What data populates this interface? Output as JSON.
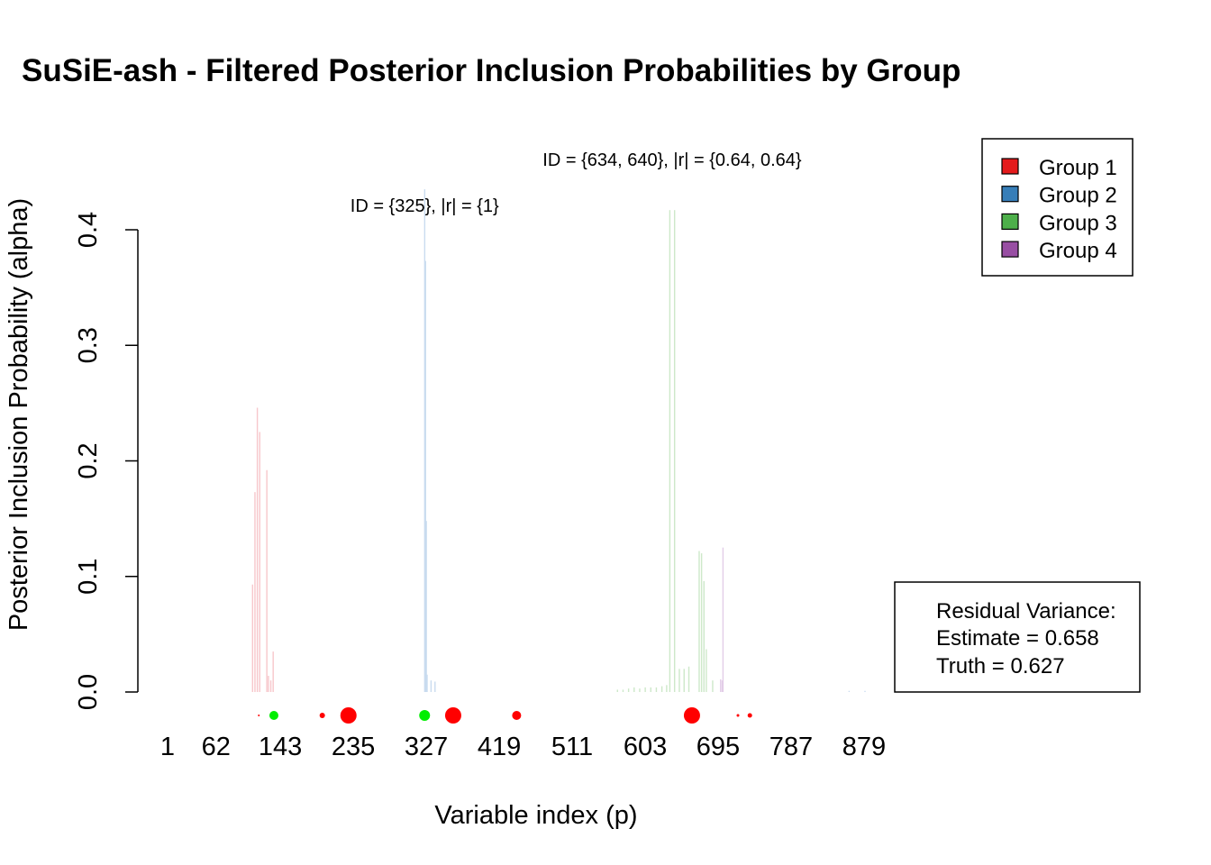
{
  "chart_data": {
    "type": "bar",
    "title": "SuSiE-ash - Filtered Posterior Inclusion Probabilities by Group",
    "xlabel": "Variable index (p)",
    "ylabel": "Posterior Inclusion Probability (alpha)",
    "xlim": [
      1,
      950
    ],
    "ylim": [
      0,
      0.4
    ],
    "x_ticks": [
      1,
      62,
      143,
      235,
      327,
      419,
      511,
      603,
      695,
      787,
      879
    ],
    "y_ticks": [
      0.0,
      0.1,
      0.2,
      0.3,
      0.4
    ],
    "y_tick_labels": [
      "0.0",
      "0.1",
      "0.2",
      "0.3",
      "0.4"
    ],
    "groups": [
      {
        "name": "Group 1",
        "color": "#E41A1C",
        "bar_color": "#F7C7CB"
      },
      {
        "name": "Group 2",
        "color": "#377EB8",
        "bar_color": "#C9DBEF"
      },
      {
        "name": "Group 3",
        "color": "#4DAF4A",
        "bar_color": "#CDE8C9"
      },
      {
        "name": "Group 4",
        "color": "#984EA3",
        "bar_color": "#E3CDE8"
      }
    ],
    "bars": [
      {
        "x": 108,
        "y": 0.093,
        "group": 1
      },
      {
        "x": 111,
        "y": 0.173,
        "group": 1
      },
      {
        "x": 114,
        "y": 0.246,
        "group": 1
      },
      {
        "x": 117,
        "y": 0.225,
        "group": 1
      },
      {
        "x": 126,
        "y": 0.192,
        "group": 1
      },
      {
        "x": 128,
        "y": 0.014,
        "group": 1
      },
      {
        "x": 131,
        "y": 0.01,
        "group": 1
      },
      {
        "x": 134,
        "y": 0.035,
        "group": 1
      },
      {
        "x": 325,
        "y": 0.435,
        "group": 2
      },
      {
        "x": 326,
        "y": 0.373,
        "group": 2
      },
      {
        "x": 327,
        "y": 0.148,
        "group": 2
      },
      {
        "x": 328,
        "y": 0.015,
        "group": 2
      },
      {
        "x": 333,
        "y": 0.01,
        "group": 2
      },
      {
        "x": 338,
        "y": 0.009,
        "group": 2
      },
      {
        "x": 568,
        "y": 0.002,
        "group": 3
      },
      {
        "x": 575,
        "y": 0.002,
        "group": 3
      },
      {
        "x": 582,
        "y": 0.003,
        "group": 3
      },
      {
        "x": 589,
        "y": 0.004,
        "group": 3
      },
      {
        "x": 596,
        "y": 0.003,
        "group": 3
      },
      {
        "x": 603,
        "y": 0.004,
        "group": 3
      },
      {
        "x": 610,
        "y": 0.004,
        "group": 3
      },
      {
        "x": 617,
        "y": 0.004,
        "group": 3
      },
      {
        "x": 624,
        "y": 0.005,
        "group": 3
      },
      {
        "x": 630,
        "y": 0.006,
        "group": 3
      },
      {
        "x": 634,
        "y": 0.417,
        "group": 3
      },
      {
        "x": 640,
        "y": 0.417,
        "group": 3
      },
      {
        "x": 646,
        "y": 0.02,
        "group": 3
      },
      {
        "x": 652,
        "y": 0.02,
        "group": 3
      },
      {
        "x": 658,
        "y": 0.022,
        "group": 3
      },
      {
        "x": 671,
        "y": 0.122,
        "group": 3
      },
      {
        "x": 674,
        "y": 0.12,
        "group": 3
      },
      {
        "x": 677,
        "y": 0.096,
        "group": 3
      },
      {
        "x": 680,
        "y": 0.037,
        "group": 3
      },
      {
        "x": 688,
        "y": 0.01,
        "group": 3
      },
      {
        "x": 701,
        "y": 0.125,
        "group": 4
      },
      {
        "x": 698,
        "y": 0.011,
        "group": 4
      },
      {
        "x": 700,
        "y": 0.01,
        "group": 4
      },
      {
        "x": 860,
        "y": 0.001,
        "group": 2
      },
      {
        "x": 880,
        "y": 0.001,
        "group": 2
      }
    ],
    "true_effects": [
      {
        "x": 116,
        "size": 1,
        "color": "#FF0000"
      },
      {
        "x": 135,
        "size": 5,
        "color": "#00EE00"
      },
      {
        "x": 196,
        "size": 3,
        "color": "#FF0000"
      },
      {
        "x": 229,
        "size": 9,
        "color": "#FF0000"
      },
      {
        "x": 325,
        "size": 6,
        "color": "#00EE00"
      },
      {
        "x": 361,
        "size": 9,
        "color": "#FF0000"
      },
      {
        "x": 441,
        "size": 5,
        "color": "#FF0000"
      },
      {
        "x": 662,
        "size": 9,
        "color": "#FF0000"
      },
      {
        "x": 720,
        "size": 1.5,
        "color": "#FF0000"
      },
      {
        "x": 735,
        "size": 2.5,
        "color": "#FF0000"
      }
    ],
    "annotations": [
      {
        "x": 325,
        "y": 0.41,
        "text": "ID = {325}, |r| = {1}"
      },
      {
        "x": 637,
        "y": 0.45,
        "text": "ID = {634, 640}, |r| = {0.64, 0.64}"
      }
    ],
    "legend_position": "top-right"
  },
  "residual_box": {
    "header": "Residual Variance:",
    "estimate": "Estimate = 0.658",
    "truth": "Truth = 0.627"
  }
}
